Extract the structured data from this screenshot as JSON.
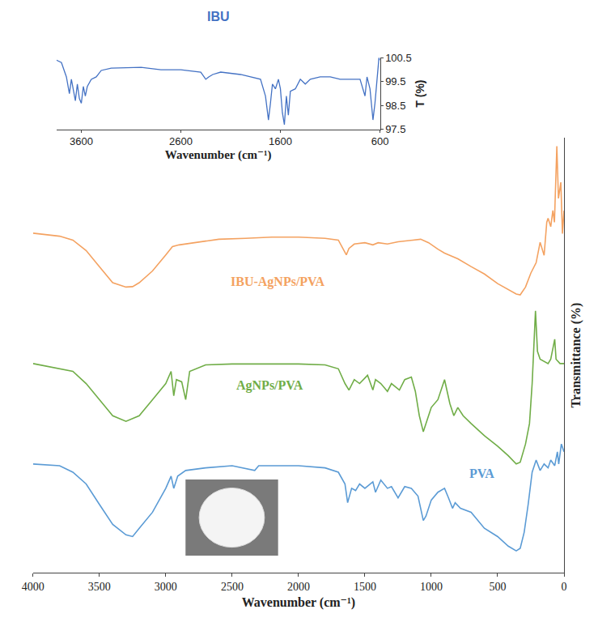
{
  "chart_data": [
    {
      "type": "line",
      "title": "IBU",
      "x_label": "Wavenumber (cm⁻¹)",
      "y_label": "T (%)",
      "xlim": [
        3850,
        600
      ],
      "xticks": [
        3600,
        2600,
        1600,
        600
      ],
      "ylim": [
        97.5,
        100.5
      ],
      "yticks": [
        97.5,
        98.5,
        99.5,
        100.5
      ],
      "grid": false,
      "series": [
        {
          "name": "IBU",
          "color": "#4472c4",
          "x": [
            3850,
            3800,
            3750,
            3720,
            3700,
            3680,
            3660,
            3640,
            3620,
            3600,
            3580,
            3560,
            3540,
            3500,
            3450,
            3400,
            3300,
            3000,
            2800,
            2600,
            2400,
            2350,
            2320,
            2280,
            2200,
            2000,
            1900,
            1800,
            1750,
            1720,
            1700,
            1680,
            1650,
            1620,
            1600,
            1580,
            1560,
            1540,
            1520,
            1500,
            1450,
            1400,
            1350,
            1300,
            1200,
            1100,
            1000,
            900,
            800,
            750,
            730,
            700,
            670,
            650,
            630,
            610,
            600
          ],
          "values": [
            100.4,
            100.3,
            99.7,
            99.0,
            99.6,
            99.1,
            98.7,
            99.4,
            98.8,
            98.6,
            99.3,
            98.9,
            99.3,
            99.6,
            99.7,
            99.97,
            100.07,
            100.1,
            100.0,
            100.0,
            99.9,
            99.6,
            99.7,
            99.8,
            99.9,
            99.8,
            99.7,
            99.6,
            98.9,
            97.9,
            98.6,
            99.4,
            99.2,
            99.6,
            99.2,
            98.2,
            97.7,
            98.9,
            98.1,
            99.1,
            99.2,
            99.6,
            99.4,
            99.6,
            99.7,
            99.7,
            99.6,
            99.6,
            99.6,
            98.9,
            99.7,
            99.2,
            97.9,
            98.6,
            99.6,
            100.5,
            100.4
          ]
        }
      ]
    },
    {
      "type": "line",
      "x_label": "Wavenumber (cm⁻¹)",
      "y_label": "Transmittance (%)",
      "xlim": [
        4000,
        0
      ],
      "xticks": [
        4000,
        3500,
        3000,
        2500,
        2000,
        1500,
        1000,
        500,
        0
      ],
      "ylim": [
        0,
        100
      ],
      "yticks": [],
      "tick_labels": "x",
      "grid": false,
      "series": [
        {
          "name": "IBU-AgNPs/PVA",
          "color": "#f4a261",
          "x": [
            4000,
            3900,
            3800,
            3700,
            3600,
            3500,
            3400,
            3300,
            3250,
            3200,
            3100,
            3000,
            2950,
            2900,
            2850,
            2800,
            2600,
            2400,
            2200,
            2000,
            1800,
            1700,
            1660,
            1640,
            1620,
            1580,
            1500,
            1440,
            1400,
            1330,
            1250,
            1150,
            1080,
            1020,
            950,
            900,
            800,
            700,
            600,
            500,
            420,
            360,
            330,
            290,
            250,
            210,
            180,
            150,
            130,
            120,
            100,
            84,
            72,
            54,
            42,
            24,
            12,
            0
          ],
          "values": [
            78.1,
            77.8,
            77.4,
            76.5,
            74.1,
            70.4,
            66.7,
            65.7,
            65.8,
            66.7,
            69.4,
            73.1,
            75.0,
            75.4,
            75.6,
            75.9,
            76.7,
            76.9,
            77.2,
            77.2,
            76.9,
            76.5,
            74.4,
            73.1,
            74.6,
            75.6,
            75.9,
            75.4,
            75.9,
            75.6,
            76.1,
            76.5,
            76.7,
            75.9,
            74.4,
            73.5,
            72.2,
            70.4,
            68.7,
            66.5,
            65.2,
            64.1,
            63.9,
            65.7,
            68.9,
            71.3,
            76.0,
            73.0,
            80.6,
            81.5,
            79.6,
            83.3,
            80.6,
            98.1,
            86.1,
            89.8,
            78.0,
            83.3
          ]
        },
        {
          "name": "AgNPs/PVA",
          "color": "#70ad47",
          "x": [
            4000,
            3700,
            3600,
            3500,
            3400,
            3300,
            3200,
            3100,
            3000,
            2960,
            2940,
            2920,
            2880,
            2850,
            2820,
            2700,
            2500,
            2000,
            1800,
            1700,
            1650,
            1620,
            1580,
            1540,
            1480,
            1440,
            1420,
            1380,
            1330,
            1300,
            1240,
            1200,
            1150,
            1120,
            1090,
            1060,
            1040,
            1000,
            950,
            900,
            860,
            830,
            800,
            760,
            700,
            600,
            500,
            420,
            360,
            330,
            290,
            260,
            240,
            215,
            200,
            180,
            120,
            100,
            70,
            60,
            30,
            0
          ],
          "values": [
            48.1,
            46.3,
            43.5,
            39.8,
            36.1,
            34.8,
            36.1,
            39.8,
            43.5,
            46.3,
            40.7,
            44.4,
            43.9,
            39.8,
            46.3,
            47.8,
            48.0,
            48.0,
            47.8,
            46.9,
            43.5,
            42.0,
            44.4,
            43.5,
            45.4,
            42.0,
            44.4,
            43.5,
            41.7,
            43.5,
            42.0,
            44.4,
            45.0,
            41.7,
            36.1,
            32.4,
            34.3,
            38.0,
            39.8,
            44.4,
            38.9,
            36.1,
            38.0,
            36.1,
            34.3,
            31.5,
            29.1,
            26.9,
            25.0,
            25.4,
            29.6,
            34.3,
            43.5,
            60.2,
            50.9,
            49.1,
            48.1,
            49.1,
            53.7,
            49.1,
            48.1,
            48.1
          ]
        },
        {
          "name": "PVA",
          "color": "#5b9bd5",
          "x": [
            4000,
            3800,
            3700,
            3600,
            3500,
            3400,
            3300,
            3250,
            3200,
            3100,
            3000,
            2960,
            2940,
            2910,
            2850,
            2700,
            2500,
            2330,
            2300,
            2000,
            1800,
            1700,
            1650,
            1630,
            1600,
            1570,
            1540,
            1500,
            1440,
            1420,
            1380,
            1330,
            1300,
            1250,
            1200,
            1150,
            1100,
            1080,
            1060,
            1040,
            1000,
            950,
            900,
            870,
            840,
            820,
            780,
            700,
            600,
            500,
            420,
            360,
            330,
            300,
            270,
            240,
            210,
            180,
            150,
            120,
            100,
            70,
            50,
            40,
            20,
            0
          ],
          "values": [
            25.0,
            24.6,
            23.1,
            20.4,
            15.7,
            11.1,
            8.7,
            8.3,
            10.2,
            13.9,
            19.4,
            22.2,
            19.4,
            22.2,
            23.5,
            24.1,
            24.6,
            23.5,
            24.6,
            24.6,
            24.1,
            23.1,
            20.4,
            16.1,
            19.4,
            18.9,
            20.4,
            19.4,
            20.9,
            18.5,
            21.3,
            19.4,
            19.8,
            17.2,
            19.8,
            19.4,
            17.6,
            14.8,
            12.0,
            13.0,
            16.7,
            18.5,
            19.4,
            17.2,
            14.8,
            16.1,
            14.8,
            13.9,
            10.2,
            8.3,
            6.1,
            5.0,
            5.6,
            9.3,
            15.7,
            23.1,
            25.9,
            23.5,
            25.0,
            24.1,
            25.9,
            24.6,
            27.8,
            25.0,
            29.6,
            27.8
          ]
        }
      ]
    }
  ]
}
